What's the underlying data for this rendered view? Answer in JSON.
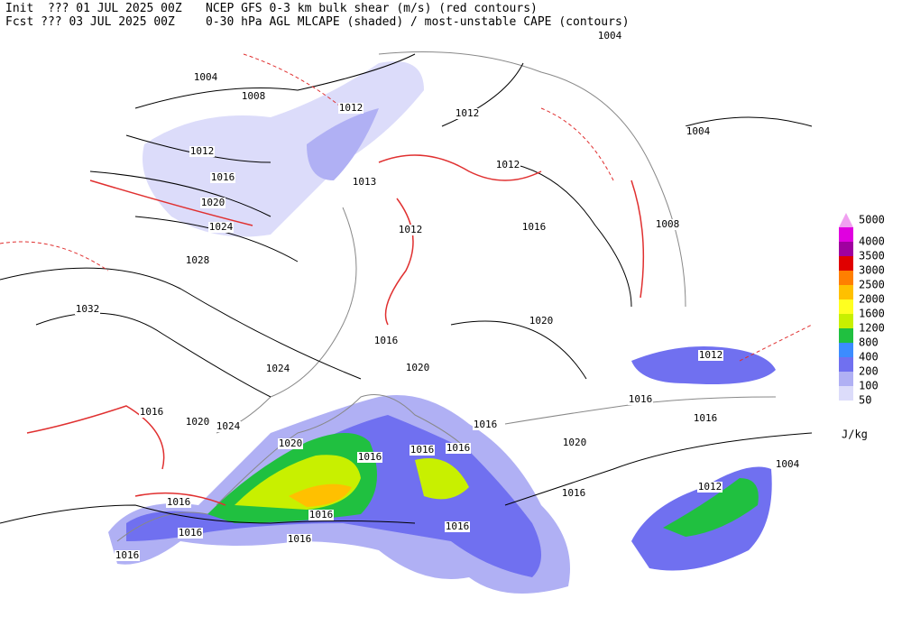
{
  "header": {
    "init": "Init  ??? 01 JUL 2025 00Z",
    "fcst": "Fcst ??? 03 JUL 2025 00Z",
    "model": "NCEP GFS 0-3 km bulk shear (m/s) (red contours)",
    "field": "0-30 hPa AGL MLCAPE (shaded) / most-unstable CAPE (contours)"
  },
  "legend": {
    "levels": [
      5000,
      4000,
      3500,
      3000,
      2500,
      2000,
      1600,
      1200,
      800,
      400,
      200,
      100,
      50
    ],
    "colors": [
      "#f0a0f0",
      "#e000e0",
      "#a000a0",
      "#e00000",
      "#ff7f00",
      "#ffc000",
      "#ffff20",
      "#c8f000",
      "#20c040",
      "#3c8cff",
      "#7070f0",
      "#b0b0f4",
      "#dcdcfa"
    ],
    "unit": "J/kg"
  },
  "isobars": [
    "1004",
    "1008",
    "1012",
    "1012",
    "1004",
    "1004",
    "1012",
    "1016",
    "1013",
    "1012",
    "1020",
    "1024",
    "1012",
    "1016",
    "1008",
    "1028",
    "1032",
    "1020",
    "1016",
    "1024",
    "1020",
    "1012",
    "1016",
    "1016",
    "1016",
    "1020",
    "1024",
    "1020",
    "1016",
    "1016",
    "1016",
    "1016",
    "1020",
    "1004",
    "1016",
    "1016",
    "1016",
    "1012",
    "1016",
    "1016",
    "1016",
    "1016"
  ]
}
